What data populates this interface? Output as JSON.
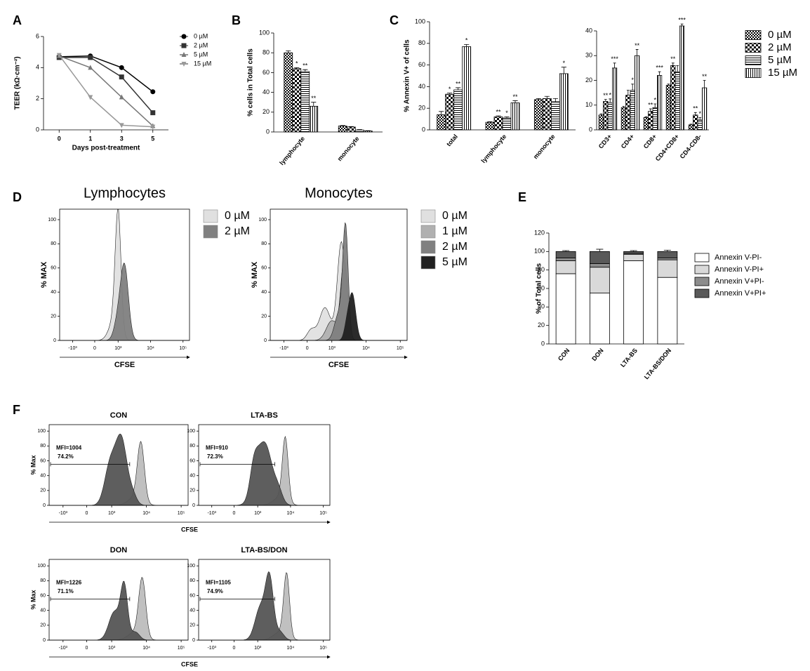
{
  "panel_labels": [
    "A",
    "B",
    "C",
    "D",
    "E",
    "F"
  ],
  "chart_data": [
    {
      "type": "line",
      "xlabel": "Days post-treatment",
      "ylabel": "TEER (kΩ·cm⁻²)",
      "categories": [
        "0",
        "1",
        "3",
        "5"
      ],
      "ylim": [
        0,
        6
      ],
      "yticks": [
        0,
        2,
        4,
        6
      ],
      "series": [
        {
          "name": "0 µM",
          "color": "#000000",
          "marker": "circle",
          "values": [
            4.7,
            4.75,
            4.0,
            2.45
          ]
        },
        {
          "name": "2 µM",
          "color": "#333333",
          "marker": "square",
          "values": [
            4.65,
            4.65,
            3.4,
            1.1
          ]
        },
        {
          "name": "5 µM",
          "color": "#777777",
          "marker": "triangle-up",
          "values": [
            4.75,
            4.0,
            2.1,
            0.25
          ]
        },
        {
          "name": "15 µM",
          "color": "#999999",
          "marker": "triangle-down",
          "values": [
            4.8,
            2.1,
            0.3,
            0.2
          ]
        }
      ]
    },
    {
      "type": "bar",
      "ylabel": "% cells in Total cells",
      "categories": [
        "lymphocyte",
        "monocyte"
      ],
      "ylim": [
        0,
        100
      ],
      "yticks": [
        0,
        20,
        40,
        60,
        80,
        100
      ],
      "series": [
        {
          "pattern": "checker-fine",
          "values": [
            80,
            6
          ],
          "errors": [
            2,
            0.5
          ],
          "stars": [
            null,
            null
          ]
        },
        {
          "pattern": "checker-coarse",
          "values": [
            64,
            5
          ],
          "errors": [
            1,
            0.5
          ],
          "stars": [
            "*",
            null
          ]
        },
        {
          "pattern": "hlines",
          "values": [
            61,
            2
          ],
          "errors": [
            2,
            0.5
          ],
          "stars": [
            "**",
            null
          ]
        },
        {
          "pattern": "vlines",
          "values": [
            26,
            1
          ],
          "errors": [
            4,
            0.3
          ],
          "stars": [
            "**",
            null
          ]
        }
      ]
    },
    {
      "type": "bar",
      "ylabel": "% Annexin V+ of cells",
      "categories": [
        "total",
        "lymphocyte",
        "monocyte"
      ],
      "ylim": [
        0,
        100
      ],
      "yticks": [
        0,
        20,
        40,
        60,
        80,
        100
      ],
      "series": [
        {
          "pattern": "checker-fine",
          "values": [
            14,
            7,
            28
          ],
          "errors": [
            3,
            0.5,
            1
          ],
          "stars": [
            null,
            null,
            null
          ]
        },
        {
          "pattern": "checker-coarse",
          "values": [
            33,
            12,
            29
          ],
          "errors": [
            1,
            1,
            2
          ],
          "stars": [
            "*",
            "**",
            null
          ]
        },
        {
          "pattern": "hlines",
          "values": [
            37,
            11,
            26
          ],
          "errors": [
            2,
            1,
            3
          ],
          "stars": [
            "**",
            "*",
            null
          ]
        },
        {
          "pattern": "vlines",
          "values": [
            77,
            25,
            52
          ],
          "errors": [
            2,
            2,
            6
          ],
          "stars": [
            "*",
            "**",
            "*"
          ]
        }
      ]
    },
    {
      "type": "bar",
      "categories": [
        "CD3+",
        "CD4+",
        "CD8+",
        "CD4+CD8+",
        "CD4-CD8-"
      ],
      "ylim": [
        0,
        40
      ],
      "yticks": [
        0,
        10,
        20,
        30,
        40
      ],
      "series": [
        {
          "name": "0 µM",
          "pattern": "checker-fine",
          "values": [
            6,
            9,
            5,
            18,
            2
          ],
          "errors": [
            0.5,
            0.5,
            0.3,
            0.5,
            0.3
          ],
          "stars": [
            null,
            null,
            null,
            null,
            null
          ]
        },
        {
          "name": "2 µM",
          "pattern": "checker-coarse",
          "values": [
            11.5,
            14,
            7.5,
            26,
            6
          ],
          "errors": [
            0.8,
            2,
            1,
            1,
            1
          ],
          "stars": [
            "**",
            null,
            "**",
            "**",
            "**"
          ]
        },
        {
          "name": "5 µM",
          "pattern": "hlines",
          "values": [
            11,
            16,
            9,
            23.5,
            4
          ],
          "errors": [
            1.5,
            2.5,
            1.5,
            2.5,
            1
          ],
          "stars": [
            "*",
            "*",
            "*",
            null,
            "*"
          ]
        },
        {
          "name": "15 µM",
          "pattern": "vlines",
          "values": [
            25,
            30,
            22,
            42,
            17
          ],
          "errors": [
            2,
            2.5,
            1.5,
            0.8,
            3
          ],
          "stars": [
            "***",
            "**",
            "***",
            "***",
            "**"
          ]
        }
      ]
    },
    {
      "type": "stacked_bar",
      "ylabel": "% of Total cells",
      "categories": [
        "CON",
        "DON",
        "LTA-BS",
        "LTA-BS/DON"
      ],
      "ylim": [
        0,
        120
      ],
      "yticks": [
        0,
        20,
        40,
        60,
        80,
        100,
        120
      ],
      "series": [
        {
          "name": "Annexin V-PI-",
          "color": "#ffffff",
          "values": [
            76,
            55,
            90,
            72
          ],
          "errors": [
            1.5,
            2,
            0.5,
            3
          ]
        },
        {
          "name": "Annexin V-PI+",
          "color": "#d9d9d9",
          "values": [
            14,
            28,
            7,
            19
          ],
          "errors": [
            1.5,
            1.5,
            0.5,
            1.5
          ]
        },
        {
          "name": "Annexin V+PI-",
          "color": "#8c8c8c",
          "values": [
            3,
            4,
            1,
            2
          ],
          "errors": [
            0.5,
            1,
            0.3,
            1
          ]
        },
        {
          "name": "Annexin V+PI+",
          "color": "#595959",
          "values": [
            7,
            13,
            2,
            7
          ],
          "errors": [
            1,
            2.5,
            1,
            1.5
          ]
        }
      ]
    }
  ],
  "flow": {
    "yticks": [
      0,
      20,
      40,
      60,
      80,
      100
    ],
    "xtick_labels": [
      "-10³",
      "0",
      "10³",
      "10⁴",
      "10⁵"
    ],
    "panels": [
      {
        "title": "Lymphocytes",
        "ylabel": "% MAX",
        "xlabel": "CFSE",
        "legend": [
          {
            "name": "0 µM",
            "color": "#e0e0e0"
          },
          {
            "name": "2 µM",
            "color": "#808080"
          }
        ]
      },
      {
        "title": "Monocytes",
        "ylabel": "% MAX",
        "xlabel": "CFSE",
        "legend": [
          {
            "name": "0 µM",
            "color": "#e0e0e0"
          },
          {
            "name": "1 µM",
            "color": "#b0b0b0"
          },
          {
            "name": "2 µM",
            "color": "#808080"
          },
          {
            "name": "5 µM",
            "color": "#202020"
          }
        ]
      },
      {
        "title": "CON",
        "ylabel": "% Max",
        "xlabel": "CFSE",
        "mfi": "MFI=1004",
        "gate": "74.2%"
      },
      {
        "title": "LTA-BS",
        "mfi": "MFI=910",
        "gate": "72.3%"
      },
      {
        "title": "DON",
        "ylabel": "% Max",
        "xlabel": "CFSE",
        "mfi": "MFI=1226",
        "gate": "71.1%"
      },
      {
        "title": "LTA-BS/DON",
        "mfi": "MFI=1105",
        "gate": "74.9%"
      }
    ]
  }
}
